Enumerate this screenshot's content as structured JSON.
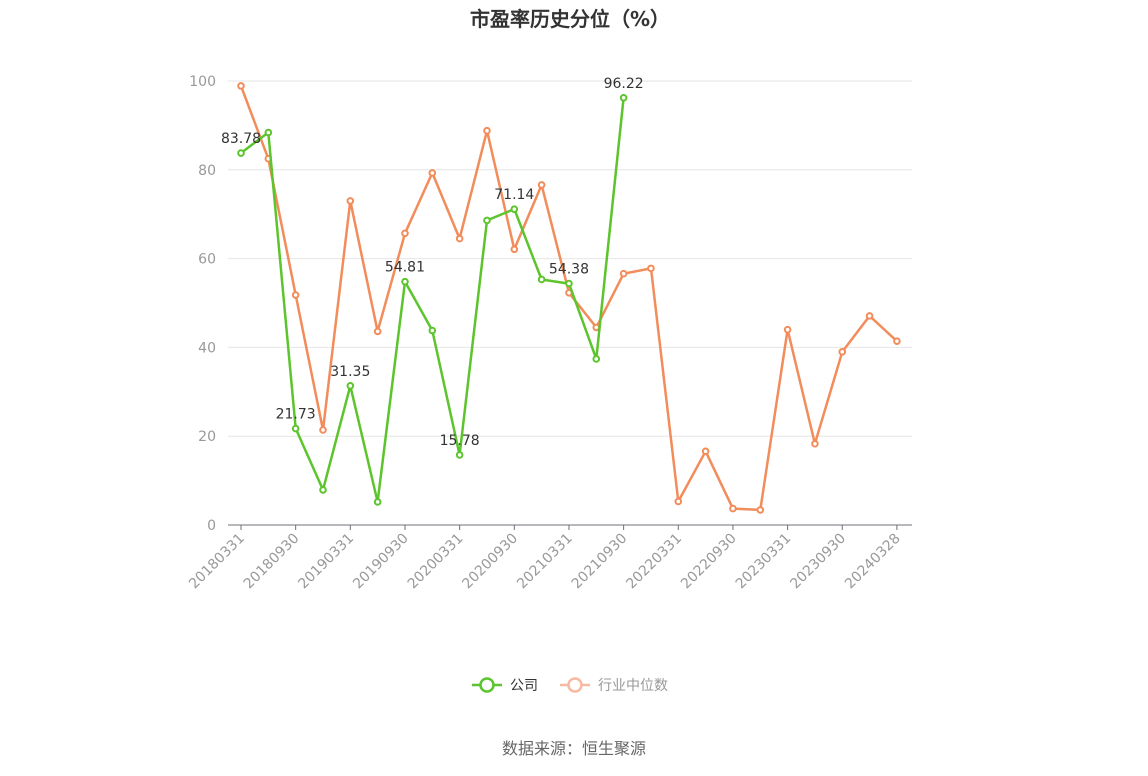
{
  "chart_data": {
    "type": "line",
    "title": "市盈率历史分位（%）",
    "ylim": [
      0,
      100
    ],
    "yticks": [
      0,
      20,
      40,
      60,
      80,
      100
    ],
    "grid": true,
    "legend_position": "bottom",
    "x": [
      "20180331",
      "20180630",
      "20180930",
      "20181231",
      "20190331",
      "20190630",
      "20190930",
      "20191231",
      "20200331",
      "20200630",
      "20200930",
      "20201231",
      "20210331",
      "20210630",
      "20210930",
      "20211231",
      "20220331",
      "20220630",
      "20220930",
      "20221231",
      "20230331",
      "20230630",
      "20230930",
      "20231231",
      "20240328"
    ],
    "xtick_labels": [
      "20180331",
      "20180930",
      "20190331",
      "20190930",
      "20200331",
      "20200930",
      "20210331",
      "20210930",
      "20220331",
      "20220930",
      "20230331",
      "20230930",
      "20240328"
    ],
    "series": [
      {
        "name": "公司",
        "color": "#5cc42c",
        "values": [
          83.78,
          88.4,
          21.73,
          7.9,
          31.35,
          5.2,
          54.81,
          43.8,
          15.78,
          68.6,
          71.14,
          55.3,
          54.38,
          37.4,
          96.22,
          null,
          null,
          null,
          null,
          null,
          null,
          null,
          null,
          null,
          null
        ],
        "labels": {
          "0": "83.78",
          "2": "21.73",
          "4": "31.35",
          "6": "54.81",
          "8": "15.78",
          "10": "71.14",
          "12": "54.38",
          "14": "96.22"
        }
      },
      {
        "name": "行业中位数",
        "color": "#f28c5a",
        "values": [
          98.9,
          82.5,
          51.8,
          21.4,
          73.0,
          43.6,
          65.7,
          79.3,
          64.5,
          88.8,
          62.1,
          76.6,
          52.3,
          44.5,
          56.6,
          57.8,
          5.3,
          16.6,
          3.7,
          3.4,
          44.0,
          18.3,
          39.0,
          47.1,
          41.4
        ]
      }
    ],
    "source_text": "数据来源：恒生聚源"
  }
}
